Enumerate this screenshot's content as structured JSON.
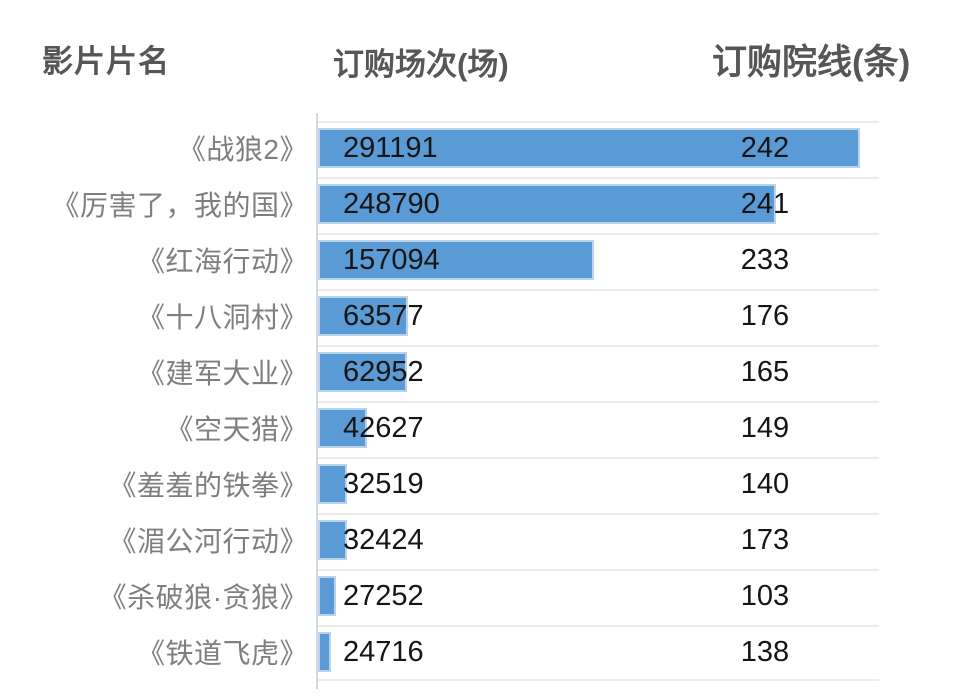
{
  "header": {
    "movie_col": "影片片名",
    "sessions_col": "订购场次(场)",
    "cinema_lines_col": "订购院线(条)"
  },
  "chart_data": {
    "type": "bar",
    "orientation": "horizontal",
    "title": "",
    "categories": [
      "《战狼2》",
      "《厉害了，我的国》",
      "《红海行动》",
      "《十八洞村》",
      "《建军大业》",
      "《空天猎》",
      "《羞羞的铁拳》",
      "《湄公河行动》",
      "《杀破狼·贪狼》",
      "《铁道飞虎》"
    ],
    "series": [
      {
        "name": "订购场次(场)",
        "display": "bar_with_label",
        "values": [
          291191,
          248790,
          157094,
          63577,
          62952,
          42627,
          32519,
          32424,
          27252,
          24716
        ]
      },
      {
        "name": "订购院线(条)",
        "display": "label_only",
        "values": [
          242,
          241,
          233,
          176,
          165,
          149,
          140,
          173,
          103,
          138
        ]
      }
    ],
    "bar_axis": {
      "min": 18000,
      "max": 300000
    },
    "grid": true,
    "legend_position": "none",
    "colors": {
      "bar_fill": "#5b9bd5",
      "bar_border": "#b9d3ec",
      "gridline": "#ebebeb",
      "axis_line": "#d9d9d9",
      "value_text": "#151515",
      "category_text": "#7f7f7f",
      "header_text": "#565656"
    }
  }
}
